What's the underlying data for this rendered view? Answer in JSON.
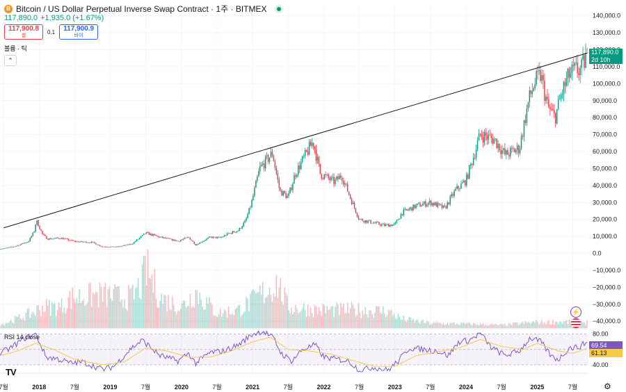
{
  "header": {
    "symbol_icon": "B",
    "title": "Bitcoin / US Dollar Perpetual Inverse Swap Contract · 1주 · BITMEX"
  },
  "quote": {
    "price": "117,890.0",
    "change": "+1,935.0 (+1.67%)"
  },
  "trade": {
    "sell_price": "117,900.8",
    "sell_label": "셀",
    "spread": "0.1",
    "buy_price": "117,900.9",
    "buy_label": "바이"
  },
  "volume_label": "볼륨 · 틱",
  "collapse_icon": "chevron-up-icon",
  "price_badge": {
    "price": "117,890.0",
    "countdown": "2d 10h"
  },
  "rsi_badges": {
    "rsi": "69.54",
    "ma": "61.13"
  },
  "logo_text": "TV",
  "colors": {
    "up": "#089981",
    "down": "#f23645",
    "rsi_line": "#7e57c2",
    "rsi_ma": "#f7c948",
    "trendline": "#131722"
  },
  "chart_data": [
    {
      "type": "candlestick",
      "title": "Bitcoin / US Dollar Perpetual Inverse Swap Contract · 1주 · BITMEX",
      "y_ticks": [
        "140,000.0",
        "130,000.0",
        "120,000.0",
        "110,000.0",
        "100,000.0",
        "90,000.0",
        "80,000.0",
        "70,000.0",
        "60,000.0",
        "50,000.0",
        "40,000.0",
        "30,000.0",
        "20,000.0",
        "10,000.0",
        "0.0",
        "−10,000.0",
        "−20,000.0",
        "−30,000.0",
        "−40,000.0"
      ],
      "ylim": [
        -44000,
        146000
      ],
      "x_ticks": [
        {
          "t": 2017.5,
          "label": "7월"
        },
        {
          "t": 2018.0,
          "label": "2018"
        },
        {
          "t": 2018.5,
          "label": "7월"
        },
        {
          "t": 2019.0,
          "label": "2019"
        },
        {
          "t": 2019.5,
          "label": "7월"
        },
        {
          "t": 2020.0,
          "label": "2020"
        },
        {
          "t": 2020.5,
          "label": "7월"
        },
        {
          "t": 2021.0,
          "label": "2021"
        },
        {
          "t": 2021.5,
          "label": "7월"
        },
        {
          "t": 2022.0,
          "label": "2022"
        },
        {
          "t": 2022.5,
          "label": "7월"
        },
        {
          "t": 2023.0,
          "label": "2023"
        },
        {
          "t": 2023.5,
          "label": "7월"
        },
        {
          "t": 2024.0,
          "label": "2024"
        },
        {
          "t": 2024.5,
          "label": "7월"
        },
        {
          "t": 2025.0,
          "label": "2025"
        },
        {
          "t": 2025.5,
          "label": "7월"
        }
      ],
      "xlim": [
        2017.45,
        2025.72
      ],
      "price_path": [
        [
          2017.45,
          2500
        ],
        [
          2017.65,
          4000
        ],
        [
          2017.85,
          7000
        ],
        [
          2017.93,
          13000
        ],
        [
          2017.96,
          19500
        ],
        [
          2018.05,
          11000
        ],
        [
          2018.12,
          8500
        ],
        [
          2018.3,
          9000
        ],
        [
          2018.5,
          7000
        ],
        [
          2018.75,
          6500
        ],
        [
          2018.88,
          4000
        ],
        [
          2019.1,
          3800
        ],
        [
          2019.3,
          5500
        ],
        [
          2019.5,
          12000
        ],
        [
          2019.7,
          9500
        ],
        [
          2019.95,
          7200
        ],
        [
          2020.1,
          9500
        ],
        [
          2020.2,
          5000
        ],
        [
          2020.4,
          9500
        ],
        [
          2020.55,
          9200
        ],
        [
          2020.65,
          11500
        ],
        [
          2020.8,
          13500
        ],
        [
          2020.9,
          19000
        ],
        [
          2020.98,
          29000
        ],
        [
          2021.1,
          50000
        ],
        [
          2021.28,
          59000
        ],
        [
          2021.38,
          37000
        ],
        [
          2021.5,
          33000
        ],
        [
          2021.6,
          47000
        ],
        [
          2021.85,
          66000
        ],
        [
          2021.95,
          47000
        ],
        [
          2022.15,
          42000
        ],
        [
          2022.25,
          46000
        ],
        [
          2022.4,
          30000
        ],
        [
          2022.5,
          20000
        ],
        [
          2022.85,
          16500
        ],
        [
          2023.0,
          17000
        ],
        [
          2023.1,
          24000
        ],
        [
          2023.3,
          28000
        ],
        [
          2023.5,
          30000
        ],
        [
          2023.7,
          26500
        ],
        [
          2023.85,
          37000
        ],
        [
          2024.0,
          43000
        ],
        [
          2024.2,
          70000
        ],
        [
          2024.4,
          67000
        ],
        [
          2024.55,
          58000
        ],
        [
          2024.75,
          62000
        ],
        [
          2024.88,
          90000
        ],
        [
          2024.96,
          100000
        ],
        [
          2025.05,
          105000
        ],
        [
          2025.15,
          86000
        ],
        [
          2025.25,
          80000
        ],
        [
          2025.35,
          95000
        ],
        [
          2025.45,
          105000
        ],
        [
          2025.55,
          108000
        ],
        [
          2025.62,
          108000
        ],
        [
          2025.7,
          117890
        ]
      ],
      "trendline": [
        [
          2017.5,
          15000
        ],
        [
          2025.7,
          118000
        ]
      ],
      "volume_peaks": [
        [
          2017.45,
          0.05
        ],
        [
          2017.9,
          0.25
        ],
        [
          2018.05,
          0.35
        ],
        [
          2018.3,
          0.35
        ],
        [
          2018.45,
          0.5
        ],
        [
          2018.85,
          0.55
        ],
        [
          2019.3,
          0.5
        ],
        [
          2019.45,
          0.75
        ],
        [
          2019.5,
          1.0
        ],
        [
          2019.7,
          0.5
        ],
        [
          2020.0,
          0.35
        ],
        [
          2020.2,
          0.6
        ],
        [
          2020.5,
          0.25
        ],
        [
          2020.8,
          0.3
        ],
        [
          2021.0,
          0.45
        ],
        [
          2021.1,
          0.55
        ],
        [
          2021.35,
          0.75
        ],
        [
          2021.5,
          0.35
        ],
        [
          2021.9,
          0.3
        ],
        [
          2022.4,
          0.3
        ],
        [
          2022.9,
          0.28
        ],
        [
          2023.1,
          0.15
        ],
        [
          2023.5,
          0.08
        ],
        [
          2024.0,
          0.07
        ],
        [
          2024.5,
          0.05
        ],
        [
          2025.0,
          0.1
        ],
        [
          2025.7,
          0.1
        ]
      ],
      "rsi": {
        "label": "RSI 14 close",
        "levels": [
          80,
          60,
          40
        ],
        "ylim": [
          30,
          86
        ],
        "path": [
          [
            2017.45,
            55
          ],
          [
            2017.6,
            62
          ],
          [
            2017.8,
            75
          ],
          [
            2017.95,
            80
          ],
          [
            2018.1,
            50
          ],
          [
            2018.25,
            48
          ],
          [
            2018.45,
            42
          ],
          [
            2018.6,
            44
          ],
          [
            2018.9,
            34
          ],
          [
            2019.05,
            38
          ],
          [
            2019.3,
            62
          ],
          [
            2019.45,
            72
          ],
          [
            2019.7,
            52
          ],
          [
            2019.95,
            45
          ],
          [
            2020.1,
            55
          ],
          [
            2020.2,
            42
          ],
          [
            2020.4,
            56
          ],
          [
            2020.6,
            58
          ],
          [
            2020.8,
            66
          ],
          [
            2021.0,
            80
          ],
          [
            2021.15,
            84
          ],
          [
            2021.3,
            74
          ],
          [
            2021.4,
            55
          ],
          [
            2021.55,
            45
          ],
          [
            2021.7,
            60
          ],
          [
            2021.88,
            66
          ],
          [
            2022.0,
            50
          ],
          [
            2022.2,
            47
          ],
          [
            2022.35,
            45
          ],
          [
            2022.5,
            33
          ],
          [
            2022.7,
            37
          ],
          [
            2022.9,
            33
          ],
          [
            2023.05,
            45
          ],
          [
            2023.2,
            62
          ],
          [
            2023.4,
            60
          ],
          [
            2023.6,
            58
          ],
          [
            2023.75,
            52
          ],
          [
            2023.9,
            70
          ],
          [
            2024.05,
            72
          ],
          [
            2024.2,
            81
          ],
          [
            2024.35,
            63
          ],
          [
            2024.55,
            52
          ],
          [
            2024.75,
            58
          ],
          [
            2024.9,
            75
          ],
          [
            2025.05,
            70
          ],
          [
            2025.2,
            51
          ],
          [
            2025.3,
            47
          ],
          [
            2025.45,
            62
          ],
          [
            2025.58,
            63
          ],
          [
            2025.7,
            69.5
          ]
        ],
        "ma_path": [
          [
            2017.45,
            52
          ],
          [
            2017.7,
            58
          ],
          [
            2017.95,
            68
          ],
          [
            2018.2,
            60
          ],
          [
            2018.5,
            47
          ],
          [
            2018.9,
            40
          ],
          [
            2019.2,
            44
          ],
          [
            2019.5,
            62
          ],
          [
            2019.8,
            58
          ],
          [
            2020.1,
            50
          ],
          [
            2020.4,
            50
          ],
          [
            2020.7,
            58
          ],
          [
            2021.0,
            70
          ],
          [
            2021.25,
            76
          ],
          [
            2021.5,
            60
          ],
          [
            2021.8,
            58
          ],
          [
            2022.1,
            54
          ],
          [
            2022.4,
            46
          ],
          [
            2022.7,
            38
          ],
          [
            2023.0,
            38
          ],
          [
            2023.3,
            52
          ],
          [
            2023.6,
            57
          ],
          [
            2023.9,
            62
          ],
          [
            2024.2,
            73
          ],
          [
            2024.5,
            64
          ],
          [
            2024.8,
            60
          ],
          [
            2025.0,
            68
          ],
          [
            2025.3,
            58
          ],
          [
            2025.5,
            55
          ],
          [
            2025.7,
            61.1
          ]
        ]
      }
    }
  ]
}
